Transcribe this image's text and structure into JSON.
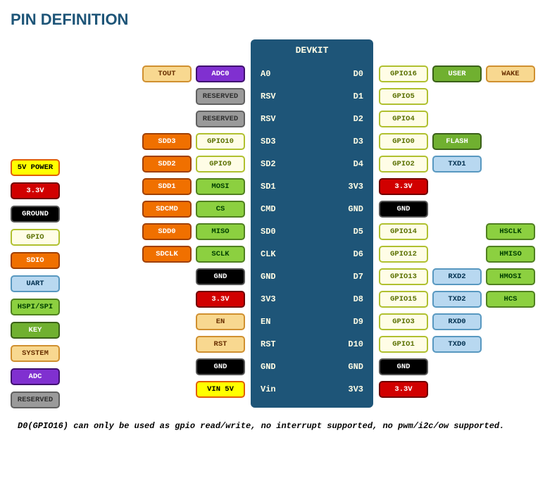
{
  "title": "PIN DEFINITION",
  "chip_title": "DEVKIT",
  "footnote": "D0(GPIO16) can only be used as gpio read/write, no interrupt supported, no pwm/i2c/ow supported.",
  "colors": {
    "power5v": {
      "bg": "#ffff00",
      "fg": "#000000",
      "bd": "#e06000"
    },
    "power3v3": {
      "bg": "#d10000",
      "fg": "#ffffff",
      "bd": "#700000"
    },
    "ground": {
      "bg": "#000000",
      "fg": "#ffffff",
      "bd": "#555555"
    },
    "gpio": {
      "bg": "#fffde6",
      "fg": "#5a7000",
      "bd": "#b0c030"
    },
    "sdio": {
      "bg": "#f07000",
      "fg": "#ffffff",
      "bd": "#a04000"
    },
    "uart": {
      "bg": "#b8d8f0",
      "fg": "#003050",
      "bd": "#5898c0"
    },
    "hspi": {
      "bg": "#8cd040",
      "fg": "#004000",
      "bd": "#508020"
    },
    "key": {
      "bg": "#70b030",
      "fg": "#ffffff",
      "bd": "#3a6018"
    },
    "system": {
      "bg": "#f8d890",
      "fg": "#6a3000",
      "bd": "#d09030"
    },
    "adc": {
      "bg": "#8030d0",
      "fg": "#ffffff",
      "bd": "#401070"
    },
    "reserved": {
      "bg": "#9a9a9a",
      "fg": "#303030",
      "bd": "#606060"
    }
  },
  "legend": [
    {
      "label": "5V POWER",
      "color": "power5v"
    },
    {
      "label": "3.3V",
      "color": "power3v3"
    },
    {
      "label": "GROUND",
      "color": "ground"
    },
    {
      "label": "GPIO",
      "color": "gpio"
    },
    {
      "label": "SDIO",
      "color": "sdio"
    },
    {
      "label": "UART",
      "color": "uart"
    },
    {
      "label": "HSPI/SPI",
      "color": "hspi"
    },
    {
      "label": "KEY",
      "color": "key"
    },
    {
      "label": "SYSTEM",
      "color": "system"
    },
    {
      "label": "ADC",
      "color": "adc"
    },
    {
      "label": "RESERVED",
      "color": "reserved"
    }
  ],
  "pins": [
    {
      "left": "A0",
      "right": "D0",
      "ltags": [
        {
          "t": "ADC0",
          "c": "adc"
        },
        {
          "t": "TOUT",
          "c": "system"
        }
      ],
      "rtags": [
        {
          "t": "GPIO16",
          "c": "gpio"
        },
        {
          "t": "USER",
          "c": "key"
        },
        {
          "t": "WAKE",
          "c": "system"
        }
      ]
    },
    {
      "left": "RSV",
      "right": "D1",
      "ltags": [
        {
          "t": "RESERVED",
          "c": "reserved"
        }
      ],
      "rtags": [
        {
          "t": "GPIO5",
          "c": "gpio"
        }
      ]
    },
    {
      "left": "RSV",
      "right": "D2",
      "ltags": [
        {
          "t": "RESERVED",
          "c": "reserved"
        }
      ],
      "rtags": [
        {
          "t": "GPIO4",
          "c": "gpio"
        }
      ]
    },
    {
      "left": "SD3",
      "right": "D3",
      "ltags": [
        {
          "t": "GPIO10",
          "c": "gpio"
        },
        {
          "t": "SDD3",
          "c": "sdio"
        }
      ],
      "rtags": [
        {
          "t": "GPIO0",
          "c": "gpio"
        },
        {
          "t": "FLASH",
          "c": "key"
        }
      ]
    },
    {
      "left": "SD2",
      "right": "D4",
      "ltags": [
        {
          "t": "GPIO9",
          "c": "gpio"
        },
        {
          "t": "SDD2",
          "c": "sdio"
        }
      ],
      "rtags": [
        {
          "t": "GPIO2",
          "c": "gpio"
        },
        {
          "t": "TXD1",
          "c": "uart"
        }
      ]
    },
    {
      "left": "SD1",
      "right": "3V3",
      "ltags": [
        {
          "t": "MOSI",
          "c": "hspi"
        },
        {
          "t": "SDD1",
          "c": "sdio"
        }
      ],
      "rtags": [
        {
          "t": "3.3V",
          "c": "power3v3"
        }
      ]
    },
    {
      "left": "CMD",
      "right": "GND",
      "ltags": [
        {
          "t": "CS",
          "c": "hspi"
        },
        {
          "t": "SDCMD",
          "c": "sdio"
        }
      ],
      "rtags": [
        {
          "t": "GND",
          "c": "ground"
        }
      ]
    },
    {
      "left": "SD0",
      "right": "D5",
      "ltags": [
        {
          "t": "MISO",
          "c": "hspi"
        },
        {
          "t": "SDD0",
          "c": "sdio"
        }
      ],
      "rtags": [
        {
          "t": "GPIO14",
          "c": "gpio"
        },
        {
          "t": "",
          "c": null
        },
        {
          "t": "HSCLK",
          "c": "hspi"
        }
      ]
    },
    {
      "left": "CLK",
      "right": "D6",
      "ltags": [
        {
          "t": "SCLK",
          "c": "hspi"
        },
        {
          "t": "SDCLK",
          "c": "sdio"
        }
      ],
      "rtags": [
        {
          "t": "GPIO12",
          "c": "gpio"
        },
        {
          "t": "",
          "c": null
        },
        {
          "t": "HMISO",
          "c": "hspi"
        }
      ]
    },
    {
      "left": "GND",
      "right": "D7",
      "ltags": [
        {
          "t": "GND",
          "c": "ground"
        }
      ],
      "rtags": [
        {
          "t": "GPIO13",
          "c": "gpio"
        },
        {
          "t": "RXD2",
          "c": "uart"
        },
        {
          "t": "HMOSI",
          "c": "hspi"
        }
      ]
    },
    {
      "left": "3V3",
      "right": "D8",
      "ltags": [
        {
          "t": "3.3V",
          "c": "power3v3"
        }
      ],
      "rtags": [
        {
          "t": "GPIO15",
          "c": "gpio"
        },
        {
          "t": "TXD2",
          "c": "uart"
        },
        {
          "t": "HCS",
          "c": "hspi"
        }
      ]
    },
    {
      "left": "EN",
      "right": "D9",
      "ltags": [
        {
          "t": "EN",
          "c": "system"
        }
      ],
      "rtags": [
        {
          "t": "GPIO3",
          "c": "gpio"
        },
        {
          "t": "RXD0",
          "c": "uart"
        }
      ]
    },
    {
      "left": "RST",
      "right": "D10",
      "ltags": [
        {
          "t": "RST",
          "c": "system"
        }
      ],
      "rtags": [
        {
          "t": "GPIO1",
          "c": "gpio"
        },
        {
          "t": "TXD0",
          "c": "uart"
        }
      ]
    },
    {
      "left": "GND",
      "right": "GND",
      "ltags": [
        {
          "t": "GND",
          "c": "ground"
        }
      ],
      "rtags": [
        {
          "t": "GND",
          "c": "ground"
        }
      ]
    },
    {
      "left": "Vin",
      "right": "3V3",
      "ltags": [
        {
          "t": "VIN 5V",
          "c": "power5v"
        }
      ],
      "rtags": [
        {
          "t": "3.3V",
          "c": "power3v3"
        }
      ]
    }
  ]
}
